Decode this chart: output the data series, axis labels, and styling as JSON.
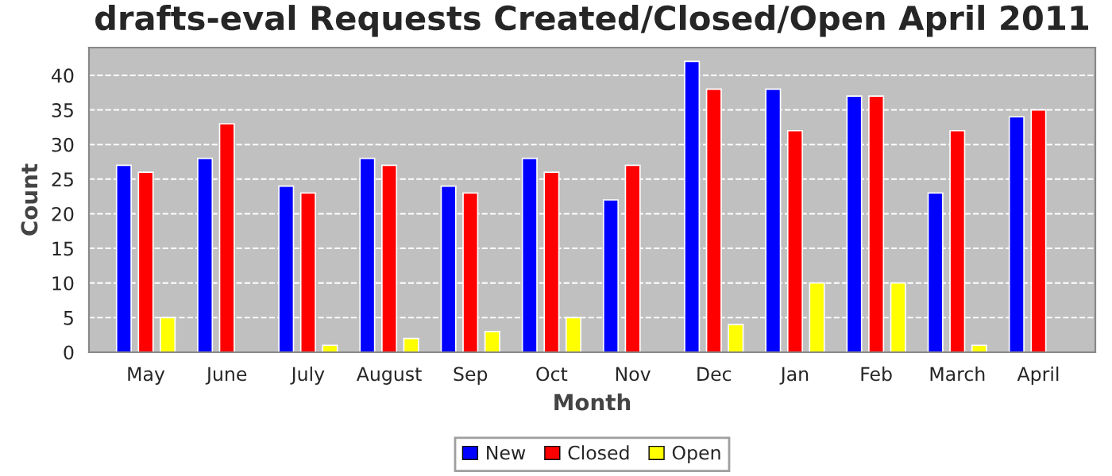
{
  "chart_data": {
    "type": "bar",
    "title": "drafts-eval Requests Created/Closed/Open April 2011",
    "xlabel": "Month",
    "ylabel": "Count",
    "categories": [
      "May",
      "June",
      "July",
      "August",
      "Sep",
      "Oct",
      "Nov",
      "Dec",
      "Jan",
      "Feb",
      "March",
      "April"
    ],
    "series": [
      {
        "name": "New",
        "color": "#0000ff",
        "values": [
          27,
          28,
          24,
          28,
          24,
          28,
          22,
          42,
          38,
          37,
          23,
          34
        ]
      },
      {
        "name": "Closed",
        "color": "#ff0000",
        "values": [
          26,
          33,
          23,
          27,
          23,
          26,
          27,
          38,
          32,
          37,
          32,
          35
        ]
      },
      {
        "name": "Open",
        "color": "#ffff00",
        "values": [
          5,
          0,
          1,
          2,
          3,
          5,
          0,
          4,
          10,
          10,
          1,
          0
        ]
      }
    ],
    "ylim": [
      0,
      44
    ],
    "yticks": [
      0,
      5,
      10,
      15,
      20,
      25,
      30,
      35,
      40
    ],
    "grid": "y",
    "legend": "bottom"
  }
}
